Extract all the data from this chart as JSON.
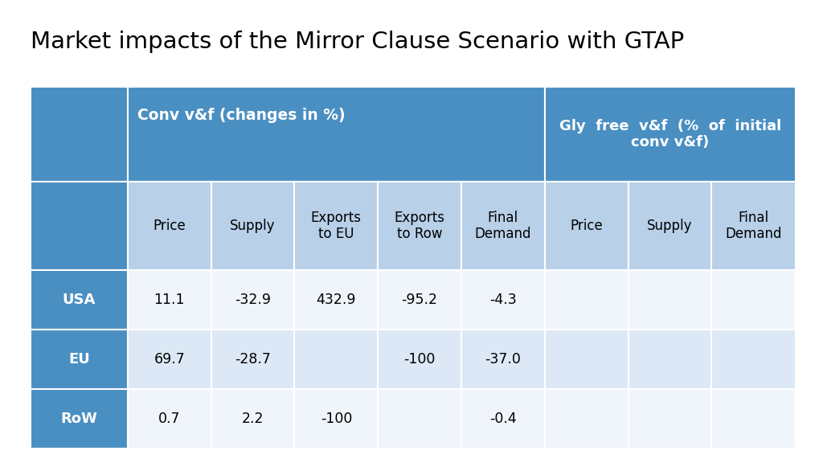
{
  "title": "Market impacts of the Mirror Clause Scenario with GTAP",
  "title_fontsize": 21,
  "background_color": "#ffffff",
  "header_dark_color": "#4a8fc2",
  "header_light_color": "#b8d0e8",
  "row_label_color": "#4a8fc2",
  "alt_row_colors": [
    "#f0f5fb",
    "#dce8f5"
  ],
  "row_labels": [
    "USA",
    "EU",
    "RoW"
  ],
  "header1_label": "Conv v&f (changes in %)",
  "header2_label": "Gly  free  v&f  (%  of  initial\nconv v&f)",
  "subheaders": [
    "Price",
    "Supply",
    "Exports\nto EU",
    "Exports\nto Row",
    "Final\nDemand",
    "Price",
    "Supply",
    "Final\nDemand"
  ],
  "data": [
    [
      "11.1",
      "-32.9",
      "432.9",
      "-95.2",
      "-4.3",
      "",
      "",
      ""
    ],
    [
      "69.7",
      "-28.7",
      "",
      "-100",
      "-37.0",
      "",
      "",
      ""
    ],
    [
      "0.7",
      "2.2",
      "-100",
      "",
      "-0.4",
      "",
      "",
      ""
    ]
  ]
}
